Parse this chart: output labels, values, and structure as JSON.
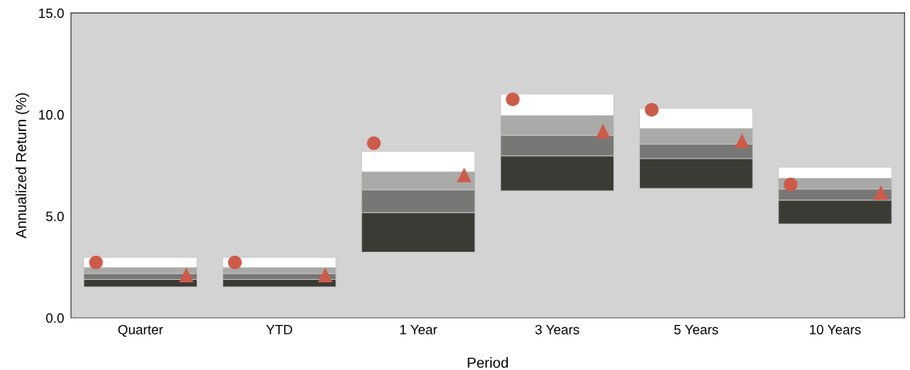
{
  "chart_data": {
    "type": "bar",
    "xlabel": "Period",
    "ylabel": "Annualized Return (%)",
    "categories": [
      "Quarter",
      "YTD",
      "1 Year",
      "3 Years",
      "5 Years",
      "10 Years"
    ],
    "series": [
      {
        "color": "#3b3b36",
        "base": [
          1.52,
          1.52,
          3.23,
          6.25,
          6.37,
          4.62
        ],
        "values": [
          0.37,
          0.37,
          1.95,
          1.72,
          1.47,
          1.17
        ]
      },
      {
        "color": "#777776",
        "base": [
          1.89,
          1.89,
          5.18,
          7.97,
          7.84,
          5.79
        ],
        "values": [
          0.29,
          0.29,
          1.12,
          1.01,
          0.71,
          0.55
        ]
      },
      {
        "color": "#a9a9a7",
        "base": [
          2.18,
          2.18,
          6.3,
          8.98,
          8.55,
          6.34
        ],
        "values": [
          0.3,
          0.3,
          0.89,
          0.98,
          0.77,
          0.53
        ]
      },
      {
        "color": "#ffffff",
        "base": [
          2.48,
          2.48,
          7.19,
          9.96,
          9.32,
          6.87
        ],
        "values": [
          0.49,
          0.49,
          1.0,
          1.05,
          0.98,
          0.54
        ]
      },
      {
        "type": "scatter",
        "marker": "circle",
        "color": "#cd5b4a",
        "x": [
          "Quarter",
          "YTD",
          "1 Year",
          "3 Years",
          "5 Years",
          "10 Years"
        ],
        "values": [
          2.73,
          2.73,
          8.59,
          10.75,
          10.24,
          6.56
        ]
      },
      {
        "type": "scatter",
        "marker": "triangle",
        "color": "#cd5b4a",
        "x": [
          "Quarter",
          "YTD",
          "1 Year",
          "3 Years",
          "5 Years",
          "10 Years"
        ],
        "values": [
          2.11,
          2.11,
          7.03,
          9.19,
          8.71,
          6.16
        ]
      }
    ],
    "ylim": [
      0,
      15
    ],
    "yticks": [
      {
        "value": 0,
        "label": "0.0"
      },
      {
        "value": 5,
        "label": "5.0"
      },
      {
        "value": 10,
        "label": "10.0"
      },
      {
        "value": 15,
        "label": "15.0"
      }
    ]
  }
}
